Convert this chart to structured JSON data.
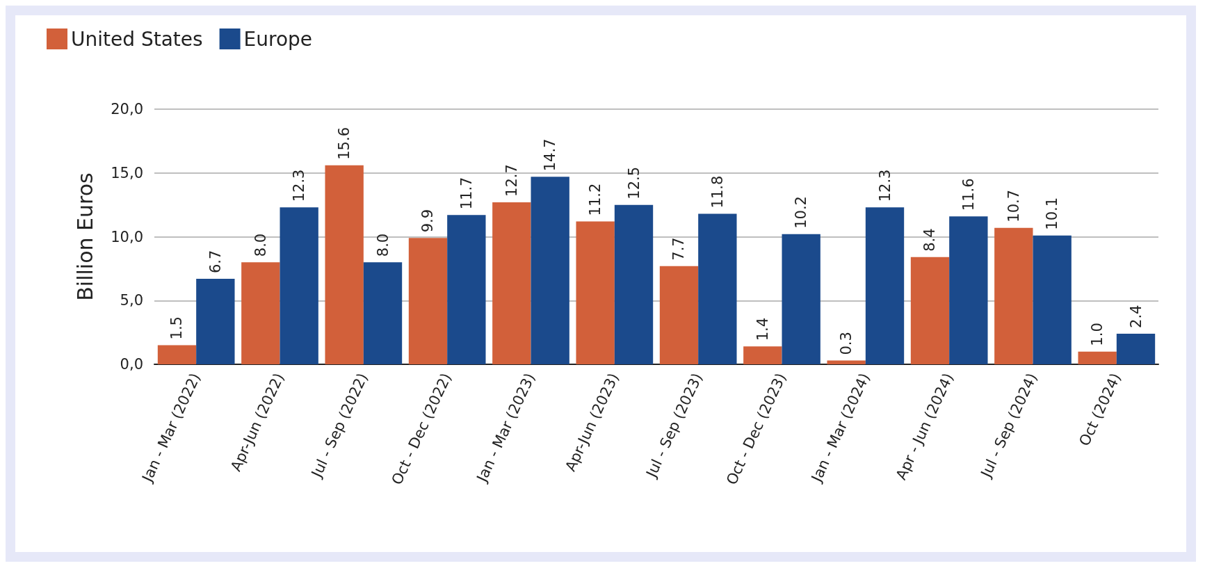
{
  "chart_data": {
    "type": "bar",
    "ylabel": "Billion Euros",
    "categories": [
      "Jan - Mar (2022)",
      "Apr-Jun (2022)",
      "Jul - Sep (2022)",
      "Oct - Dec (2022)",
      "Jan - Mar (2023)",
      "Apr-Jun (2023)",
      "Jul - Sep (2023)",
      "Oct - Dec (2023)",
      "Jan - Mar (2024)",
      "Apr - Jun (2024)",
      "Jul - Sep (2024)",
      "Oct (2024)"
    ],
    "series": [
      {
        "name": "United States",
        "color": "#d2603a",
        "values": [
          1.5,
          8.0,
          15.6,
          9.9,
          12.7,
          11.2,
          7.7,
          1.4,
          0.3,
          8.4,
          10.7,
          1.0
        ],
        "value_labels": [
          "1.5",
          "8.0",
          "15.6",
          "9.9",
          "12.7",
          "11.2",
          "7.7",
          "1.4",
          "0.3",
          "8.4",
          "10.7",
          "1.0"
        ]
      },
      {
        "name": "Europe",
        "color": "#1b4a8c",
        "values": [
          6.7,
          12.3,
          8.0,
          11.7,
          14.7,
          12.5,
          11.8,
          10.2,
          12.3,
          11.6,
          10.1,
          2.4
        ],
        "value_labels": [
          "6.7",
          "12.3",
          "8.0",
          "11.7",
          "14.7",
          "12.5",
          "11.8",
          "10.2",
          "12.3",
          "11.6",
          "10.1",
          "2.4"
        ]
      }
    ],
    "ylim": [
      0,
      20
    ],
    "yticks": [
      {
        "value": 0,
        "label": "0,0"
      },
      {
        "value": 5,
        "label": "5,0"
      },
      {
        "value": 10,
        "label": "10,0"
      },
      {
        "value": 15,
        "label": "15,0"
      },
      {
        "value": 20,
        "label": "20,0"
      }
    ],
    "grid": "y",
    "legend": "top left"
  }
}
